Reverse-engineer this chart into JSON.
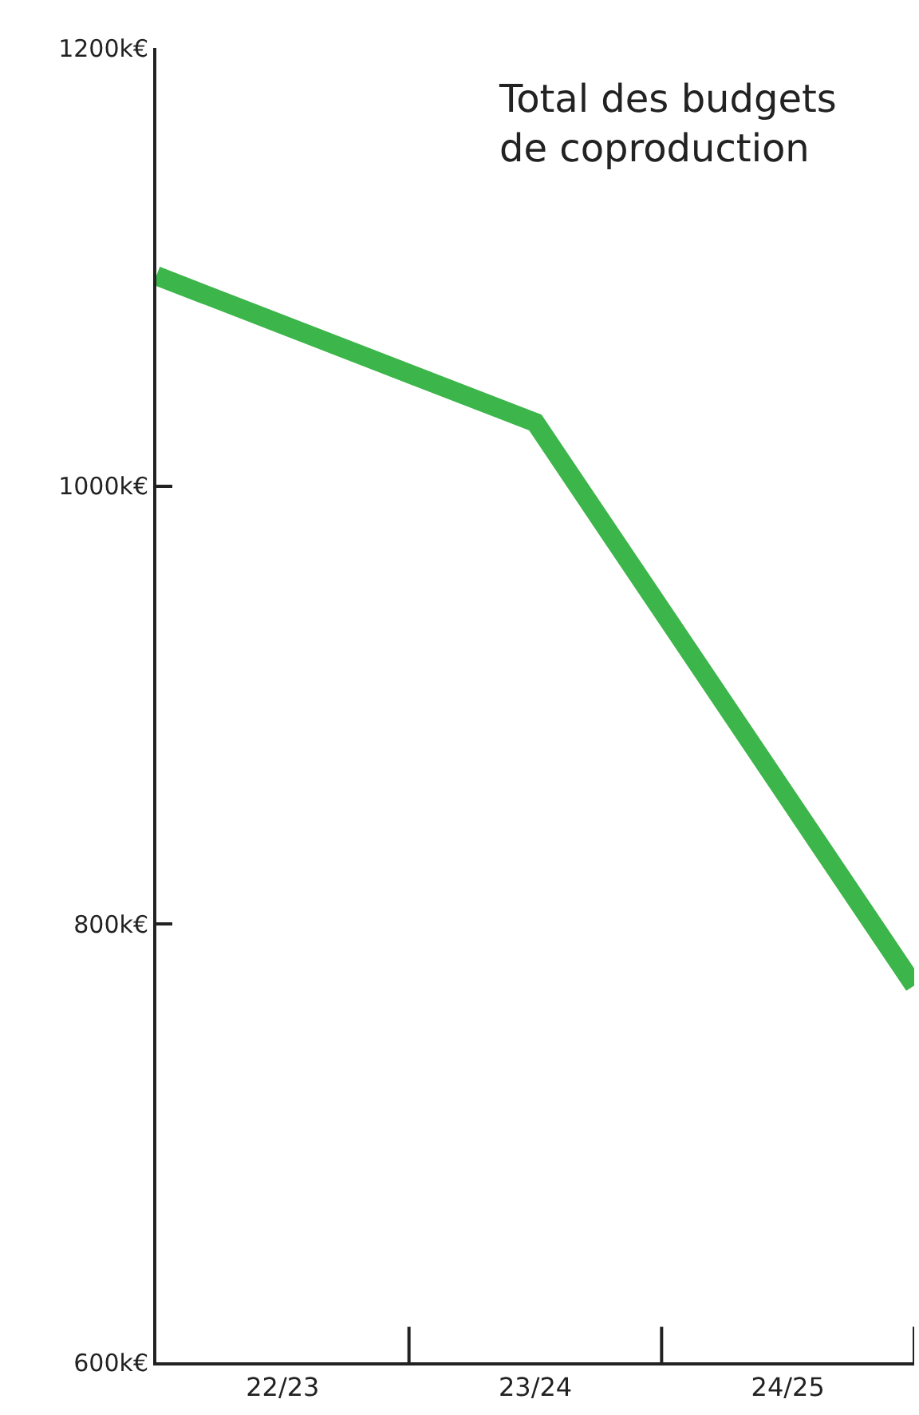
{
  "chart_data": {
    "type": "line",
    "title": "Total des budgets de coproduction",
    "categories": [
      null,
      "22/23",
      null,
      "23/24",
      null,
      "24/25",
      null
    ],
    "series": [
      {
        "color": "#3cb54a",
        "values": [
          1096,
          null,
          null,
          1029,
          null,
          null,
          772
        ]
      }
    ],
    "ylim": [
      600,
      1200
    ],
    "yticks": [
      {
        "value": 600,
        "label": "600k€"
      },
      {
        "value": 800,
        "label": "800k€"
      },
      {
        "value": 1000,
        "label": "1000k€"
      },
      {
        "value": 1200,
        "label": "1200k€"
      }
    ],
    "legend": false,
    "marker": "none",
    "line_style": "solid"
  }
}
